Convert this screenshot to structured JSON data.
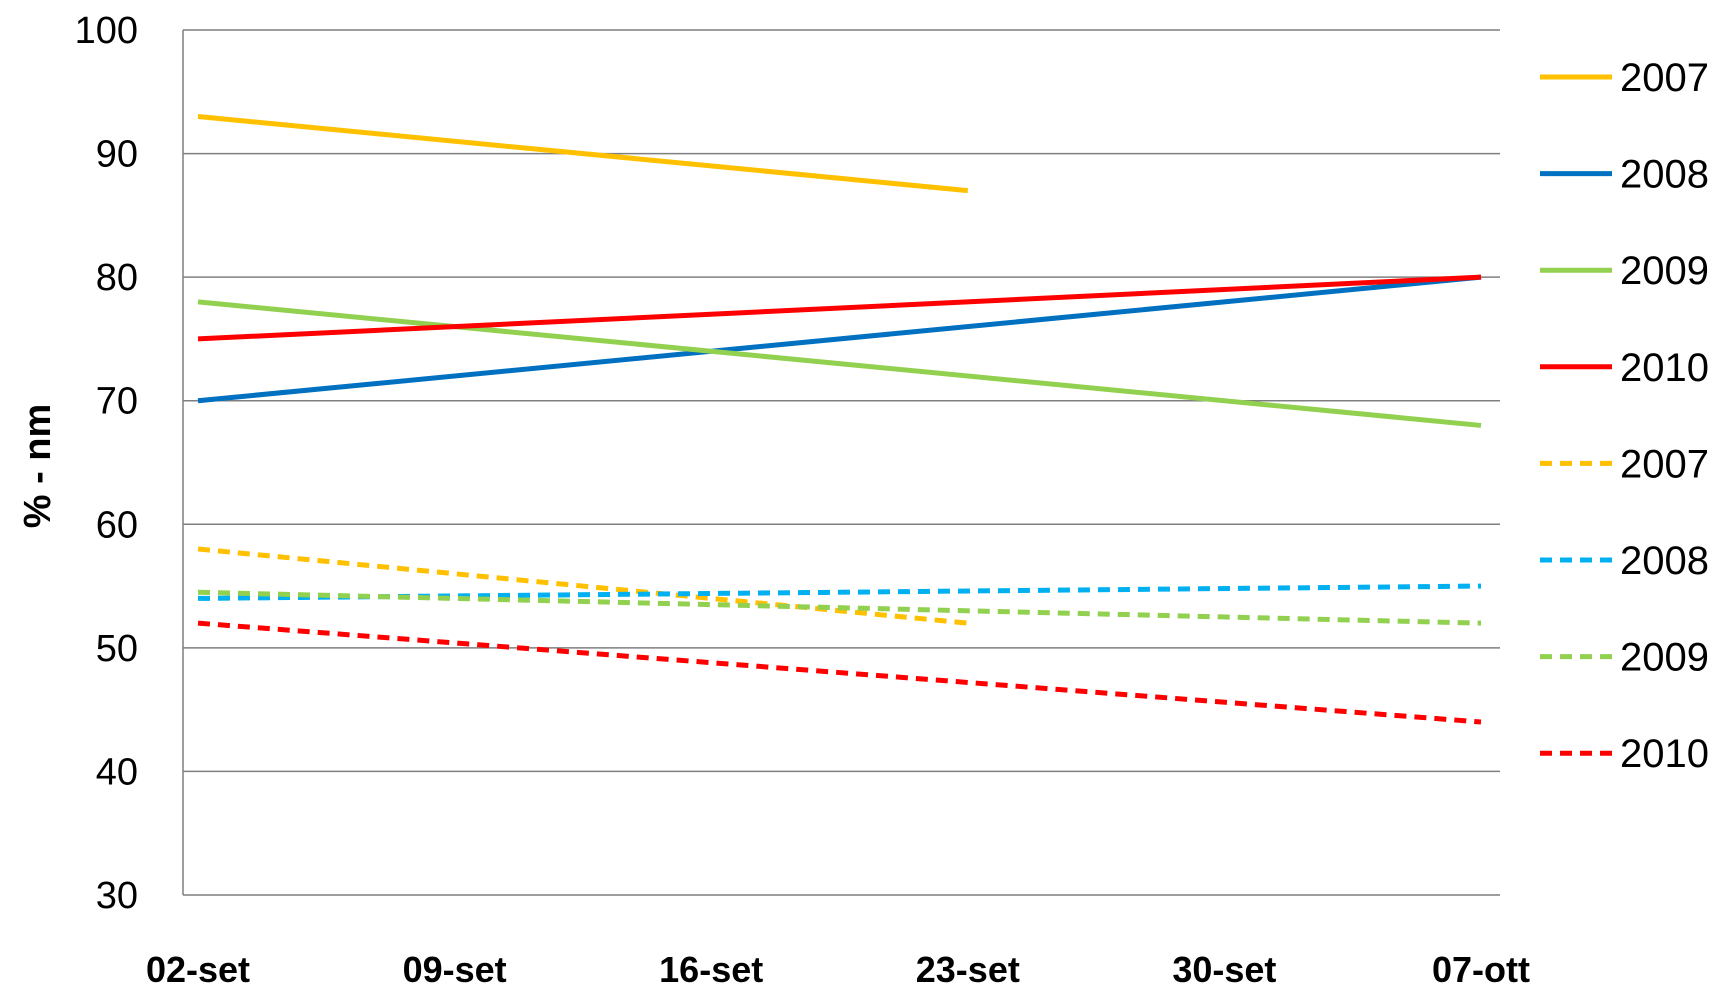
{
  "chart_data": {
    "type": "line",
    "title": "",
    "xlabel": "",
    "ylabel": "% - nm",
    "ylim": [
      30,
      100
    ],
    "yticks": [
      30,
      40,
      50,
      60,
      70,
      80,
      90,
      100
    ],
    "categories": [
      "02-set",
      "09-set",
      "16-set",
      "23-set",
      "30-set",
      "07-ott"
    ],
    "grid": "horizontal",
    "legend_position": "right",
    "series": [
      {
        "name": "2007",
        "color": "#FFC000",
        "style": "solid",
        "points": [
          {
            "x": "02-set",
            "y": 93
          },
          {
            "x": "23-set",
            "y": 87
          }
        ]
      },
      {
        "name": "2008",
        "color": "#0070C0",
        "style": "solid",
        "points": [
          {
            "x": "02-set",
            "y": 70
          },
          {
            "x": "07-ott",
            "y": 80
          }
        ]
      },
      {
        "name": "2009",
        "color": "#92D050",
        "style": "solid",
        "points": [
          {
            "x": "02-set",
            "y": 78
          },
          {
            "x": "07-ott",
            "y": 68
          }
        ]
      },
      {
        "name": "2010",
        "color": "#FF0000",
        "style": "solid",
        "points": [
          {
            "x": "02-set",
            "y": 75
          },
          {
            "x": "07-ott",
            "y": 80
          }
        ]
      },
      {
        "name": "2007",
        "color": "#FFC000",
        "style": "dashed",
        "points": [
          {
            "x": "02-set",
            "y": 58
          },
          {
            "x": "23-set",
            "y": 52
          }
        ]
      },
      {
        "name": "2008",
        "color": "#00B0F0",
        "style": "dashed",
        "points": [
          {
            "x": "02-set",
            "y": 54
          },
          {
            "x": "07-ott",
            "y": 55
          }
        ]
      },
      {
        "name": "2009",
        "color": "#92D050",
        "style": "dashed",
        "points": [
          {
            "x": "02-set",
            "y": 54.5
          },
          {
            "x": "07-ott",
            "y": 52
          }
        ]
      },
      {
        "name": "2010",
        "color": "#FF0000",
        "style": "dashed",
        "points": [
          {
            "x": "02-set",
            "y": 52
          },
          {
            "x": "07-ott",
            "y": 44
          }
        ]
      }
    ]
  }
}
